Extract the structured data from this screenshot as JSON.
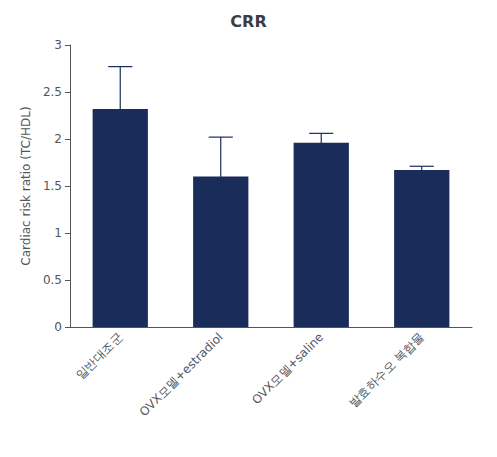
{
  "chart_data": {
    "type": "bar",
    "title": "CRR",
    "ylabel": "Cardiac risk ratio (TC/HDL)",
    "categories": [
      "일반대조군",
      "OVX모델+estradiol",
      "OVX모델+saline",
      "발효하수오 복합물"
    ],
    "values": [
      2.32,
      1.6,
      1.96,
      1.67
    ],
    "errors": [
      0.45,
      0.42,
      0.1,
      0.04
    ],
    "color": "#1a2d5a",
    "ylim": [
      0,
      3.0
    ],
    "yticks": [
      0,
      0.5,
      1,
      1.5,
      2,
      2.5,
      3
    ],
    "grid": false
  }
}
